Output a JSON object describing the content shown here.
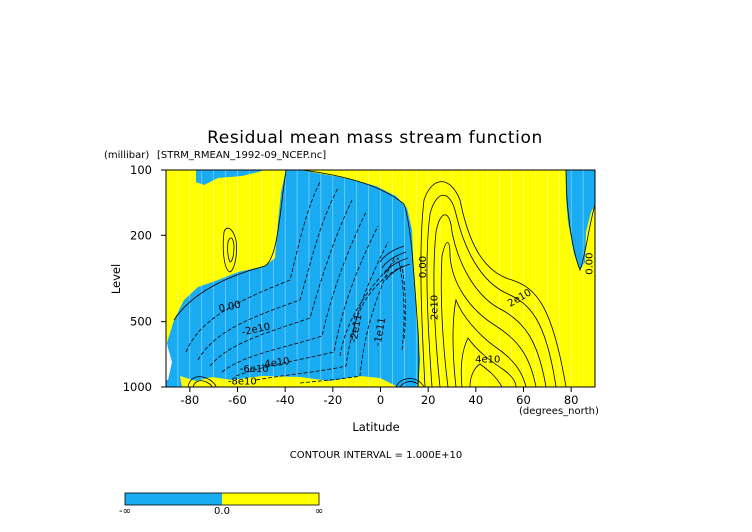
{
  "chart_data": {
    "type": "contour",
    "title": "Residual mean mass stream function",
    "subtitle": "[STRM_RMEAN_1992-09_NCEP.nc]",
    "xlabel": "Latitude",
    "xunit": "(degrees_north)",
    "ylabel": "Level",
    "yunit": "(millibar)",
    "xlim": [
      -90,
      90
    ],
    "ylim": [
      1000,
      100
    ],
    "yscale": "log",
    "xticks": [
      -80,
      -60,
      -40,
      -20,
      0,
      20,
      40,
      60,
      80
    ],
    "xtick_labels": [
      "-80",
      "-60",
      "-40",
      "-20",
      "0",
      "20",
      "40",
      "60",
      "80"
    ],
    "yticks": [
      1000,
      500,
      200,
      100
    ],
    "ytick_labels": [
      "1000",
      "500",
      "200",
      "100"
    ],
    "contour_interval_text": "CONTOUR INTERVAL = 1.000E+10",
    "fill_colors": {
      "negative": "#1AACF2",
      "positive": "#FFFF00",
      "line": "#000000"
    },
    "colorbar": {
      "labels": [
        "-∞",
        "0.0",
        "∞"
      ]
    },
    "contour_labels": [
      {
        "text": "0.00",
        "lat": -63,
        "lev": 440,
        "rot": -12
      },
      {
        "text": "-2e10",
        "lat": -52,
        "lev": 560,
        "rot": -12
      },
      {
        "text": "-4e10",
        "lat": -44,
        "lev": 800,
        "rot": -8
      },
      {
        "text": "-6e10",
        "lat": -53,
        "lev": 855,
        "rot": 0
      },
      {
        "text": "-8e10",
        "lat": -58,
        "lev": 975,
        "rot": 0
      },
      {
        "text": "-2e11",
        "lat": -9,
        "lev": 540,
        "rot": -80
      },
      {
        "text": "-1e11",
        "lat": 1,
        "lev": 560,
        "rot": -80
      },
      {
        "text": "2e10",
        "lat": 24,
        "lev": 430,
        "rot": -90
      },
      {
        "text": "0.00",
        "lat": 19,
        "lev": 280,
        "rot": -90
      },
      {
        "text": "2e10",
        "lat": 59,
        "lev": 400,
        "rot": -30
      },
      {
        "text": "4e10",
        "lat": 45,
        "lev": 770,
        "rot": 0
      },
      {
        "text": "0.00",
        "lat": 89,
        "lev": 270,
        "rot": -90
      }
    ]
  }
}
